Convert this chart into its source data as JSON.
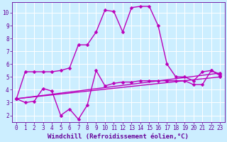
{
  "background_color": "#cceeff",
  "grid_color": "#ffffff",
  "line_color": "#bb00bb",
  "markersize": 2.5,
  "linewidth": 1.0,
  "x_label": "Windchill (Refroidissement éolien,°C)",
  "x_label_color": "#660099",
  "xlabel_fontsize": 6.5,
  "tick_fontsize": 5.5,
  "xlim": [
    -0.5,
    23.5
  ],
  "ylim": [
    1.5,
    10.8
  ],
  "yticks": [
    2,
    3,
    4,
    5,
    6,
    7,
    8,
    9,
    10
  ],
  "xticks": [
    0,
    1,
    2,
    3,
    4,
    5,
    6,
    7,
    8,
    9,
    10,
    11,
    12,
    13,
    14,
    15,
    16,
    17,
    18,
    19,
    20,
    21,
    22,
    23
  ],
  "series": [
    {
      "x": [
        0,
        1,
        2,
        3,
        4,
        5,
        6,
        7,
        8,
        9,
        10,
        11,
        12,
        13,
        14,
        15,
        16,
        17,
        18,
        19,
        20,
        21,
        22,
        23
      ],
      "y": [
        3.3,
        5.4,
        5.4,
        5.4,
        5.4,
        5.5,
        5.7,
        7.5,
        7.5,
        8.5,
        10.2,
        10.1,
        8.5,
        10.4,
        10.5,
        10.5,
        9.0,
        6.0,
        5.0,
        5.0,
        4.7,
        5.4,
        5.5,
        5.2
      ]
    },
    {
      "x": [
        0,
        1,
        2,
        3,
        4,
        5,
        6,
        7,
        8,
        9,
        10,
        11,
        12,
        13,
        14,
        15,
        16,
        17,
        18,
        19,
        20,
        21,
        22,
        23
      ],
      "y": [
        3.3,
        3.0,
        3.1,
        4.1,
        3.9,
        2.0,
        2.5,
        1.7,
        2.8,
        5.5,
        4.3,
        4.5,
        4.6,
        4.6,
        4.7,
        4.7,
        4.7,
        4.7,
        4.7,
        4.7,
        4.4,
        4.4,
        5.5,
        5.1
      ]
    },
    {
      "x": [
        0,
        23
      ],
      "y": [
        3.3,
        5.0
      ]
    },
    {
      "x": [
        0,
        23
      ],
      "y": [
        3.3,
        5.3
      ]
    }
  ]
}
